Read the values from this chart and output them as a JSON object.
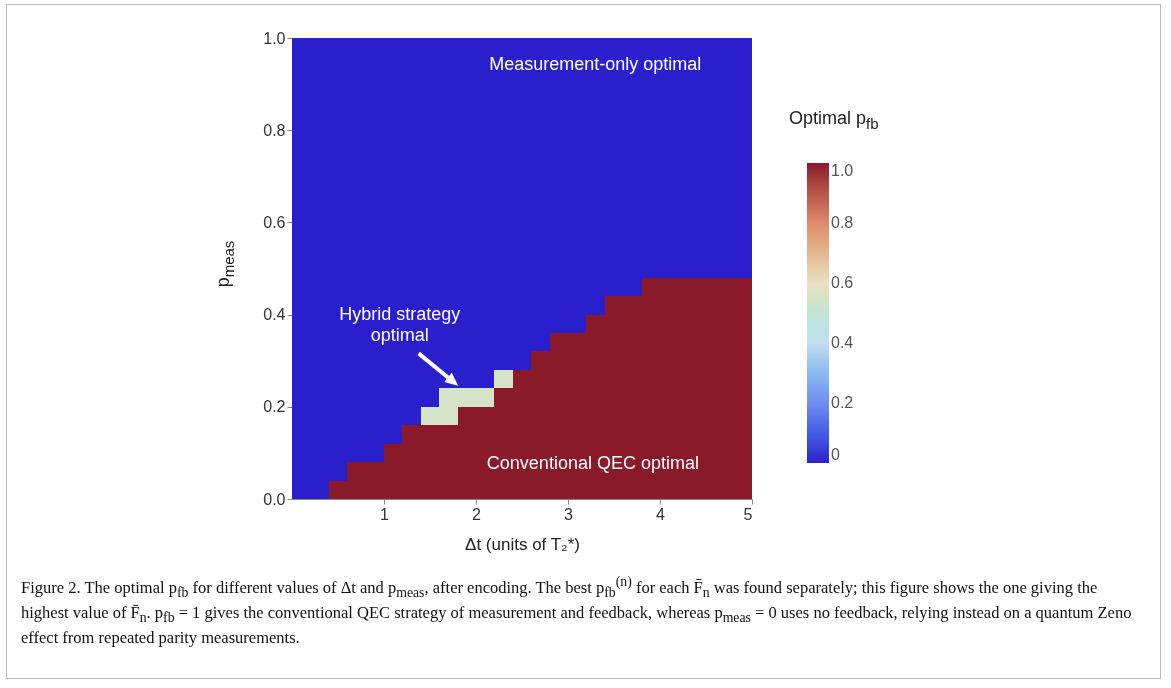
{
  "chart_data": {
    "type": "heatmap",
    "xlabel": "Δt  (units of T₂*)",
    "ylabel": "p$_{meas}$",
    "clabel": "Optimal p$_{fb}$",
    "xlim": [
      0,
      5
    ],
    "xticks": [
      1,
      2,
      3,
      4,
      5
    ],
    "ylim": [
      0,
      1
    ],
    "yticks": [
      {
        "value": 0,
        "label": "0.0"
      },
      0.2,
      0.4,
      0.6,
      0.8,
      {
        "value": 1,
        "label": "1.0"
      }
    ],
    "clim": [
      0,
      1
    ],
    "cticks": [
      0,
      0.2,
      0.4,
      0.6,
      0.8,
      {
        "value": 1,
        "label": "1.0"
      }
    ],
    "cells": [
      [
        0,
        0,
        0,
        0,
        0,
        0,
        0,
        0,
        0,
        0,
        0,
        0,
        0,
        0,
        0,
        0,
        0,
        0,
        0,
        0,
        0,
        0,
        0,
        0,
        0
      ],
      [
        0,
        0,
        0,
        0,
        0,
        0,
        0,
        0,
        0,
        0,
        0,
        0,
        0,
        0,
        0,
        0,
        0,
        0,
        0,
        0,
        0,
        0,
        0,
        0,
        0
      ],
      [
        0,
        0,
        0,
        0,
        0,
        0,
        0,
        0,
        0,
        0,
        0,
        0,
        0,
        0,
        0,
        0,
        0,
        0,
        0,
        0,
        0,
        0,
        0,
        0,
        0
      ],
      [
        0,
        0,
        0,
        0,
        0,
        0,
        0,
        0,
        0,
        0,
        0,
        0,
        0,
        0,
        0,
        0,
        0,
        0,
        0,
        0,
        0,
        0,
        0,
        0,
        0
      ],
      [
        0,
        0,
        0,
        0,
        0,
        0,
        0,
        0,
        0,
        0,
        0,
        0,
        0,
        0,
        0,
        0,
        0,
        0,
        0,
        0,
        0,
        0,
        0,
        0,
        0
      ],
      [
        0,
        0,
        0,
        0,
        0,
        0,
        0,
        0,
        0,
        0,
        0,
        0,
        0,
        0,
        0,
        0,
        0,
        0,
        0,
        0,
        0,
        0,
        0,
        0,
        0
      ],
      [
        0,
        0,
        0,
        0,
        0,
        0,
        0,
        0,
        0,
        0,
        0,
        0,
        0,
        0,
        0,
        0,
        0,
        0,
        0,
        0,
        0,
        0,
        0,
        0,
        0
      ],
      [
        0,
        0,
        0,
        0,
        0,
        0,
        0,
        0,
        0,
        0,
        0,
        0,
        0,
        0,
        0,
        0,
        0,
        0,
        0,
        0,
        0,
        0,
        0,
        0,
        0
      ],
      [
        0,
        0,
        0,
        0,
        0,
        0,
        0,
        0,
        0,
        0,
        0,
        0,
        0,
        0,
        0,
        0,
        0,
        0,
        0,
        0,
        0,
        0,
        0,
        0,
        0
      ],
      [
        0,
        0,
        0,
        0,
        0,
        0,
        0,
        0,
        0,
        0,
        0,
        0,
        0,
        0,
        0,
        0,
        0,
        0,
        0,
        0,
        0,
        0,
        0,
        0,
        0
      ],
      [
        0,
        0,
        0,
        0,
        0,
        0,
        0,
        0,
        0,
        0,
        0,
        0,
        0,
        0,
        0,
        0,
        0,
        0,
        0,
        0,
        0,
        0,
        0,
        0,
        0
      ],
      [
        0,
        0,
        0,
        0,
        0,
        0,
        0,
        0,
        0,
        0,
        0,
        0,
        0,
        0,
        0,
        0,
        0,
        0,
        0,
        0,
        0,
        0,
        0,
        0,
        0
      ],
      [
        0,
        0,
        0,
        0,
        0,
        0,
        0,
        0,
        0,
        0,
        0,
        0,
        0,
        0,
        0,
        0,
        0,
        0,
        0,
        0,
        0,
        0,
        0,
        0,
        0
      ],
      [
        0,
        0,
        0,
        0,
        0,
        0,
        0,
        0,
        0,
        0,
        0,
        0,
        0,
        0,
        0,
        0,
        0,
        0,
        0,
        1,
        1,
        1,
        1,
        1,
        1
      ],
      [
        0,
        0,
        0,
        0,
        0,
        0,
        0,
        0,
        0,
        0,
        0,
        0,
        0,
        0,
        0,
        0,
        0,
        1,
        1,
        1,
        1,
        1,
        1,
        1,
        1
      ],
      [
        0,
        0,
        0,
        0,
        0,
        0,
        0,
        0,
        0,
        0,
        0,
        0,
        0,
        0,
        0,
        0,
        1,
        1,
        1,
        1,
        1,
        1,
        1,
        1,
        1
      ],
      [
        0,
        0,
        0,
        0,
        0,
        0,
        0,
        0,
        0,
        0,
        0,
        0,
        0,
        0,
        1,
        1,
        1,
        1,
        1,
        1,
        1,
        1,
        1,
        1,
        1
      ],
      [
        0,
        0,
        0,
        0,
        0,
        0,
        0,
        0,
        0,
        0,
        0,
        0,
        0,
        1,
        1,
        1,
        1,
        1,
        1,
        1,
        1,
        1,
        1,
        1,
        1
      ],
      [
        0,
        0,
        0,
        0,
        0,
        0,
        0,
        0,
        0,
        0,
        0,
        0.55,
        1,
        1,
        1,
        1,
        1,
        1,
        1,
        1,
        1,
        1,
        1,
        1,
        1
      ],
      [
        0,
        0,
        0,
        0,
        0,
        0,
        0,
        0,
        0.55,
        0.55,
        0.55,
        1,
        1,
        1,
        1,
        1,
        1,
        1,
        1,
        1,
        1,
        1,
        1,
        1,
        1
      ],
      [
        0,
        0,
        0,
        0,
        0,
        0,
        0,
        0.55,
        0.55,
        1,
        1,
        1,
        1,
        1,
        1,
        1,
        1,
        1,
        1,
        1,
        1,
        1,
        1,
        1,
        1
      ],
      [
        0,
        0,
        0,
        0,
        0,
        0,
        1,
        1,
        1,
        1,
        1,
        1,
        1,
        1,
        1,
        1,
        1,
        1,
        1,
        1,
        1,
        1,
        1,
        1,
        1
      ],
      [
        0,
        0,
        0,
        0,
        0,
        1,
        1,
        1,
        1,
        1,
        1,
        1,
        1,
        1,
        1,
        1,
        1,
        1,
        1,
        1,
        1,
        1,
        1,
        1,
        1
      ],
      [
        0,
        0,
        0,
        1,
        1,
        1,
        1,
        1,
        1,
        1,
        1,
        1,
        1,
        1,
        1,
        1,
        1,
        1,
        1,
        1,
        1,
        1,
        1,
        1,
        1
      ],
      [
        0,
        0,
        1,
        1,
        1,
        1,
        1,
        1,
        1,
        1,
        1,
        1,
        1,
        1,
        1,
        1,
        1,
        1,
        1,
        1,
        1,
        1,
        1,
        1,
        1
      ]
    ],
    "annotations": [
      "Measurement-only optimal",
      "Hybrid strategy\noptimal",
      "Conventional QEC optimal",
      "Figure 2. The optimal p$_{fb}$ for different values of Δt and p$_{meas}$, after encoding. The best p$_{fb}$$^{(n)}$ for each F̄$_{n}$ was found separately; this figure shows the one giving the highest value of F̄$_{n}$. p$_{fb}$ = 1 gives the conventional QEC strategy of measurement and feedback, whereas p$_{meas}$ = 0 uses no feedback, relying instead on a quantum Zeno effect from repeated parity measurements."
    ]
  }
}
